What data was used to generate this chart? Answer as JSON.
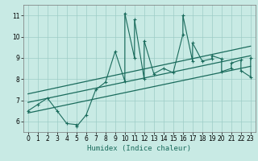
{
  "xlabel": "Humidex (Indice chaleur)",
  "xlim": [
    -0.5,
    23.5
  ],
  "ylim": [
    5.5,
    11.5
  ],
  "yticks": [
    6,
    7,
    8,
    9,
    10,
    11
  ],
  "xticks": [
    0,
    1,
    2,
    3,
    4,
    5,
    6,
    7,
    8,
    9,
    10,
    11,
    12,
    13,
    14,
    15,
    16,
    17,
    18,
    19,
    20,
    21,
    22,
    23
  ],
  "bg_color": "#c8eae4",
  "grid_color": "#9dccc6",
  "line_color": "#1a6b5c",
  "main_data": [
    [
      0,
      6.5
    ],
    [
      1,
      6.8
    ],
    [
      2,
      7.1
    ],
    [
      3,
      6.5
    ],
    [
      4,
      5.9
    ],
    [
      5,
      5.85
    ],
    [
      5,
      5.75
    ],
    [
      6,
      6.3
    ],
    [
      7,
      7.5
    ],
    [
      8,
      7.85
    ],
    [
      9,
      9.3
    ],
    [
      10,
      7.9
    ],
    [
      10,
      11.1
    ],
    [
      11,
      9.0
    ],
    [
      11,
      10.8
    ],
    [
      12,
      8.0
    ],
    [
      12,
      9.8
    ],
    [
      13,
      8.25
    ],
    [
      14,
      8.5
    ],
    [
      15,
      8.3
    ],
    [
      16,
      10.1
    ],
    [
      16,
      11.0
    ],
    [
      17,
      8.85
    ],
    [
      17,
      9.7
    ],
    [
      18,
      8.85
    ],
    [
      19,
      8.95
    ],
    [
      19,
      9.1
    ],
    [
      20,
      8.95
    ],
    [
      20,
      8.35
    ],
    [
      21,
      8.5
    ],
    [
      21,
      8.75
    ],
    [
      22,
      8.9
    ],
    [
      22,
      8.4
    ],
    [
      23,
      8.1
    ],
    [
      23,
      9.0
    ]
  ],
  "line1_x": [
    0,
    23
  ],
  "line1_y": [
    6.4,
    8.6
  ],
  "line2_x": [
    0,
    23
  ],
  "line2_y": [
    6.9,
    9.1
  ],
  "line3_x": [
    0,
    23
  ],
  "line3_y": [
    7.3,
    9.55
  ]
}
